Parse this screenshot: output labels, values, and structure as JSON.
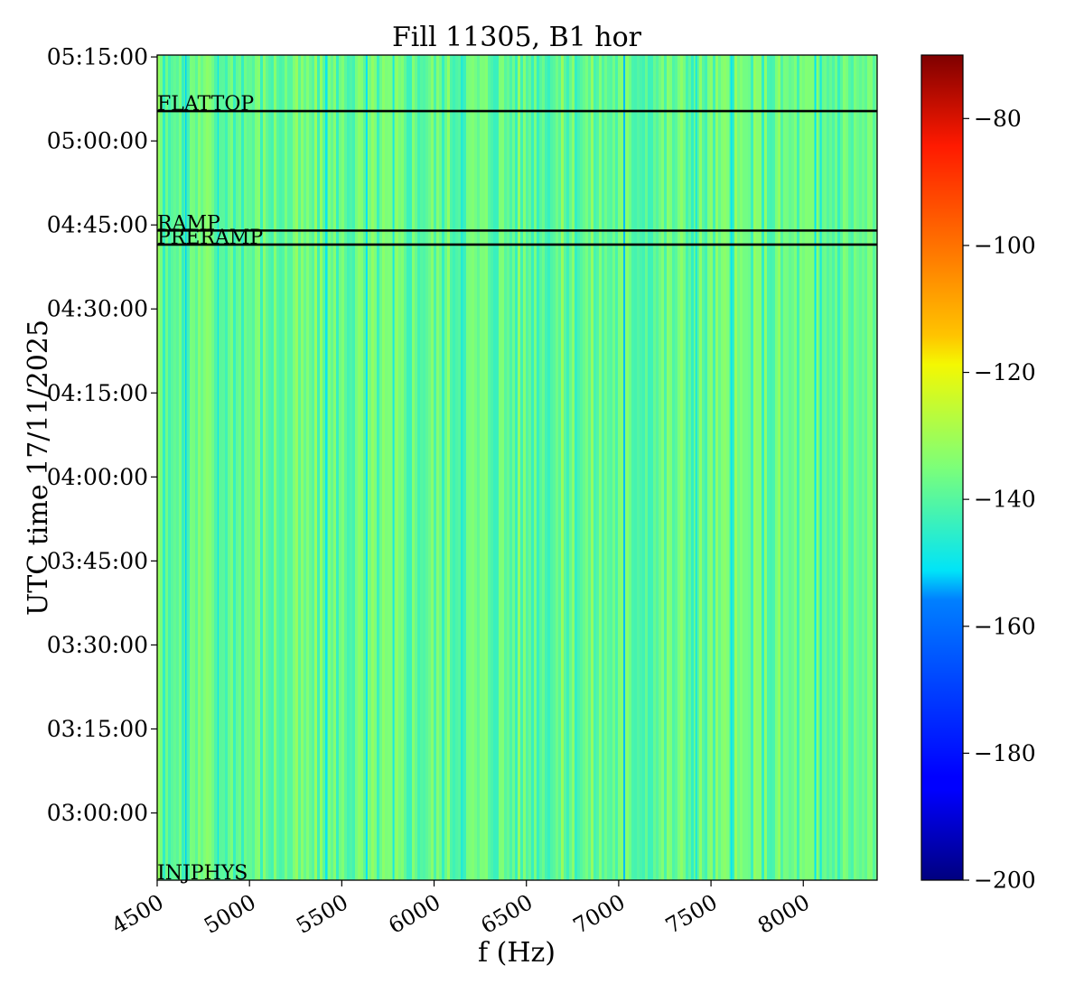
{
  "chart_data": {
    "type": "heatmap",
    "title": "Fill 11305, B1 hor",
    "xlabel": "f (Hz)",
    "ylabel": "UTC time 17/11/2025",
    "xlim": [
      4500,
      8400
    ],
    "ylim": [
      "02:48:00",
      "05:15:20"
    ],
    "x_ticks": [
      4500,
      5000,
      5500,
      6000,
      6500,
      7000,
      7500,
      8000
    ],
    "y_ticks": [
      "03:00:00",
      "03:15:00",
      "03:30:00",
      "03:45:00",
      "04:00:00",
      "04:15:00",
      "04:30:00",
      "04:45:00",
      "05:00:00",
      "05:15:00"
    ],
    "colorbar": {
      "range": [
        -200,
        -70
      ],
      "ticks": [
        -200,
        -180,
        -160,
        -140,
        -120,
        -100,
        -80
      ],
      "colormap": "jet"
    },
    "background_level": -138,
    "feature_lines": [
      {
        "f": 4655,
        "value": -152
      },
      {
        "f": 4830,
        "value": -150
      },
      {
        "f": 5415,
        "value": -150
      },
      {
        "f": 5635,
        "value": -151
      },
      {
        "f": 5780,
        "value": -148
      },
      {
        "f": 6150,
        "value": -147
      },
      {
        "f": 7030,
        "value": -153
      },
      {
        "f": 7420,
        "value": -148
      },
      {
        "f": 7610,
        "value": -150
      },
      {
        "f": 8065,
        "value": -151
      },
      {
        "f": 8095,
        "value": -148
      }
    ],
    "markers": [
      {
        "label": "FLATTOP",
        "time": "05:05:20"
      },
      {
        "label": "RAMP",
        "time": "04:44:00"
      },
      {
        "label": "PRERAMP",
        "time": "04:41:30"
      },
      {
        "label": "INJPHYS",
        "time": "02:48:00"
      }
    ]
  }
}
